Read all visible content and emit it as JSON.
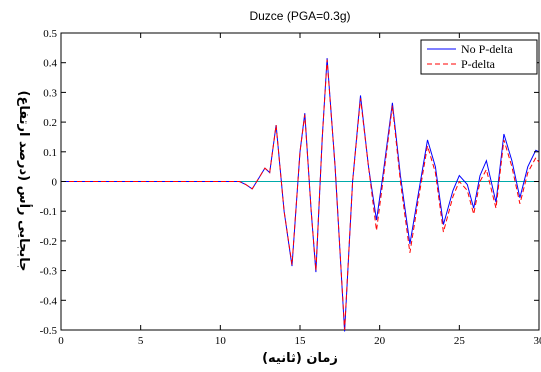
{
  "chart_data": {
    "type": "line",
    "title": "Duzce (PGA=0.3g)",
    "xlabel": "زمان (ثانیه)",
    "ylabel": "جابجایی رأس (درصد ارتفاع)",
    "xlim": [
      0,
      30
    ],
    "ylim": [
      -0.5,
      0.5
    ],
    "xticks": [
      0,
      5,
      10,
      15,
      20,
      25,
      30
    ],
    "xtick_labels": [
      "0",
      "5",
      "10",
      "15",
      "20",
      "25",
      "30"
    ],
    "yticks": [
      -0.5,
      -0.4,
      -0.3,
      -0.2,
      -0.1,
      0,
      0.1,
      0.2,
      0.3,
      0.4,
      0.5
    ],
    "ytick_labels": [
      "-0.5",
      "-0.4",
      "-0.3",
      "-0.2",
      "-0.1",
      "0",
      "0.1",
      "0.2",
      "0.3",
      "0.4",
      "0.5"
    ],
    "grid": false,
    "legend_position": "top-right",
    "series": [
      {
        "name": "No P-delta",
        "color": "#0000ff",
        "dash": "solid",
        "points": [
          [
            0,
            0
          ],
          [
            11.2,
            0
          ],
          [
            11.6,
            -0.01
          ],
          [
            12.0,
            -0.025
          ],
          [
            12.4,
            0.01
          ],
          [
            12.8,
            0.045
          ],
          [
            13.1,
            0.03
          ],
          [
            13.5,
            0.19
          ],
          [
            14.0,
            -0.1
          ],
          [
            14.5,
            -0.285
          ],
          [
            15.0,
            0.1
          ],
          [
            15.3,
            0.23
          ],
          [
            15.7,
            -0.1
          ],
          [
            16.0,
            -0.305
          ],
          [
            16.4,
            0.15
          ],
          [
            16.7,
            0.415
          ],
          [
            17.2,
            0.05
          ],
          [
            17.8,
            -0.505
          ],
          [
            18.3,
            0.0
          ],
          [
            18.8,
            0.29
          ],
          [
            19.3,
            0.05
          ],
          [
            19.8,
            -0.13
          ],
          [
            20.2,
            0.02
          ],
          [
            20.8,
            0.265
          ],
          [
            21.3,
            0.02
          ],
          [
            21.9,
            -0.21
          ],
          [
            22.4,
            -0.05
          ],
          [
            23.0,
            0.14
          ],
          [
            23.5,
            0.05
          ],
          [
            24.0,
            -0.145
          ],
          [
            24.6,
            -0.03
          ],
          [
            25.0,
            0.02
          ],
          [
            25.5,
            -0.01
          ],
          [
            25.9,
            -0.09
          ],
          [
            26.3,
            0.02
          ],
          [
            26.7,
            0.07
          ],
          [
            27.3,
            -0.07
          ],
          [
            27.8,
            0.16
          ],
          [
            28.3,
            0.07
          ],
          [
            28.8,
            -0.055
          ],
          [
            29.3,
            0.05
          ],
          [
            29.8,
            0.105
          ],
          [
            30.0,
            0.1
          ]
        ]
      },
      {
        "name": "P-delta",
        "color": "#ff0000",
        "dash": "dashed",
        "points": [
          [
            0,
            0
          ],
          [
            11.2,
            0
          ],
          [
            11.6,
            -0.01
          ],
          [
            12.0,
            -0.025
          ],
          [
            12.4,
            0.01
          ],
          [
            12.8,
            0.045
          ],
          [
            13.1,
            0.03
          ],
          [
            13.5,
            0.19
          ],
          [
            14.0,
            -0.1
          ],
          [
            14.5,
            -0.28
          ],
          [
            15.0,
            0.1
          ],
          [
            15.3,
            0.225
          ],
          [
            15.7,
            -0.1
          ],
          [
            16.0,
            -0.3
          ],
          [
            16.4,
            0.15
          ],
          [
            16.7,
            0.41
          ],
          [
            17.2,
            0.05
          ],
          [
            17.8,
            -0.5
          ],
          [
            18.3,
            0.0
          ],
          [
            18.8,
            0.28
          ],
          [
            19.3,
            0.05
          ],
          [
            19.8,
            -0.165
          ],
          [
            20.2,
            0.0
          ],
          [
            20.8,
            0.255
          ],
          [
            21.3,
            0.0
          ],
          [
            21.9,
            -0.24
          ],
          [
            22.4,
            -0.07
          ],
          [
            23.0,
            0.12
          ],
          [
            23.5,
            0.03
          ],
          [
            24.0,
            -0.17
          ],
          [
            24.6,
            -0.05
          ],
          [
            25.0,
            0.0
          ],
          [
            25.5,
            -0.03
          ],
          [
            25.9,
            -0.11
          ],
          [
            26.3,
            0.0
          ],
          [
            26.7,
            0.04
          ],
          [
            27.3,
            -0.09
          ],
          [
            27.8,
            0.14
          ],
          [
            28.3,
            0.05
          ],
          [
            28.8,
            -0.075
          ],
          [
            29.3,
            0.03
          ],
          [
            29.8,
            0.08
          ],
          [
            30.0,
            0.065
          ]
        ]
      }
    ]
  }
}
